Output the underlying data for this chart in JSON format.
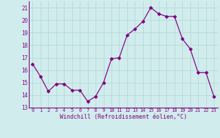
{
  "x": [
    0,
    1,
    2,
    3,
    4,
    5,
    6,
    7,
    8,
    9,
    10,
    11,
    12,
    13,
    14,
    15,
    16,
    17,
    18,
    19,
    20,
    21,
    22,
    23
  ],
  "y": [
    16.5,
    15.5,
    14.3,
    14.9,
    14.9,
    14.4,
    14.4,
    13.5,
    13.9,
    15.0,
    16.9,
    17.0,
    18.8,
    19.3,
    19.9,
    21.0,
    20.5,
    20.3,
    20.3,
    18.5,
    17.7,
    15.8,
    15.8,
    13.9
  ],
  "line_color": "#800080",
  "marker": "D",
  "marker_size": 2.5,
  "bg_color": "#d0ecec",
  "grid_color": "#b8d8d8",
  "xlabel": "Windchill (Refroidissement éolien,°C)",
  "xlabel_color": "#800080",
  "tick_color": "#800080",
  "spine_color": "#800080",
  "ylim": [
    13,
    21.5
  ],
  "yticks": [
    13,
    14,
    15,
    16,
    17,
    18,
    19,
    20,
    21
  ],
  "xlim": [
    -0.5,
    23.5
  ],
  "figsize": [
    3.2,
    2.0
  ],
  "dpi": 100
}
